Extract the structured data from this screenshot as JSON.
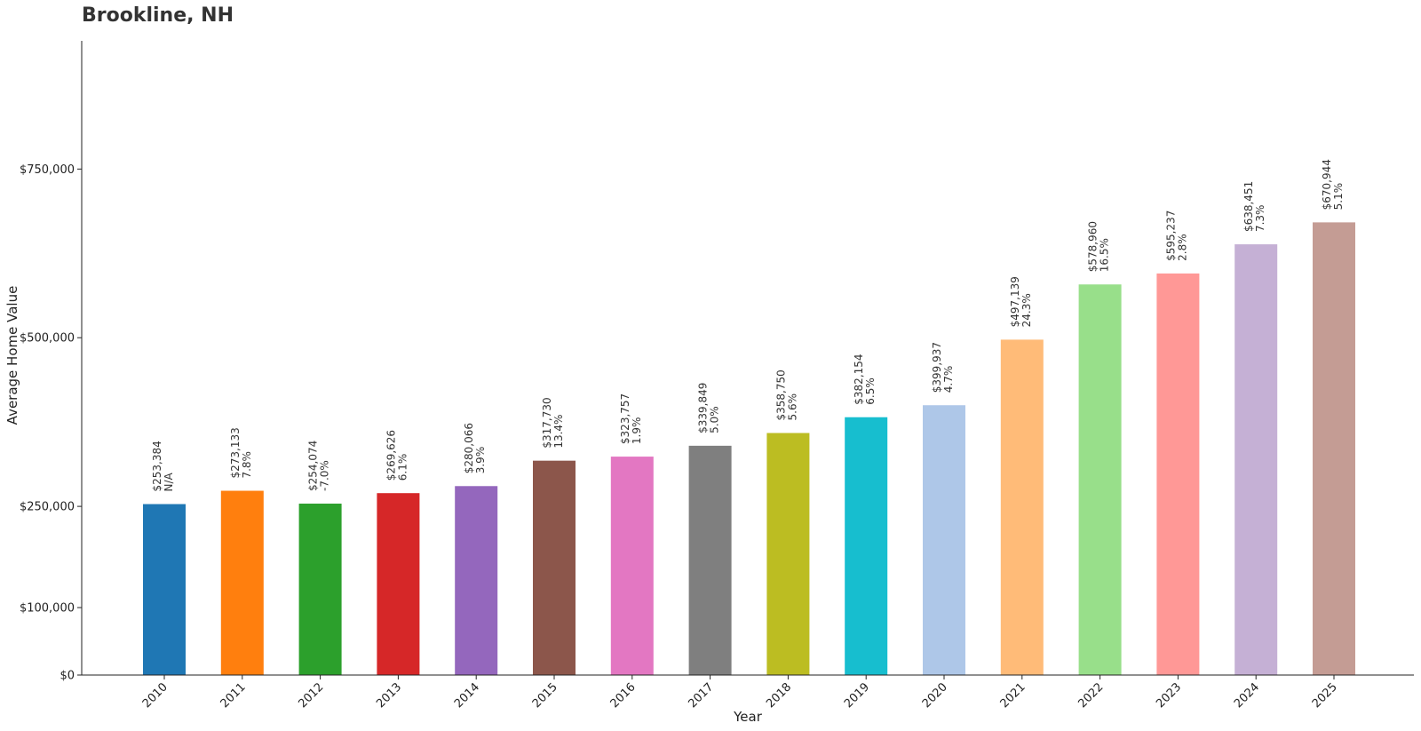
{
  "chart_data": {
    "type": "bar",
    "title": "Brookline, NH",
    "xlabel": "Year",
    "ylabel": "Average Home Value",
    "categories": [
      "2010",
      "2011",
      "2012",
      "2013",
      "2014",
      "2015",
      "2016",
      "2017",
      "2018",
      "2019",
      "2020",
      "2021",
      "2022",
      "2023",
      "2024",
      "2025"
    ],
    "values": [
      253384,
      273133,
      254074,
      269626,
      280066,
      317730,
      323757,
      339849,
      358750,
      382154,
      399937,
      497139,
      578960,
      595237,
      638451,
      670944
    ],
    "value_labels": [
      "$253,384",
      "$273,133",
      "$254,074",
      "$269,626",
      "$280,066",
      "$317,730",
      "$323,757",
      "$339,849",
      "$358,750",
      "$382,154",
      "$399,937",
      "$497,139",
      "$578,960",
      "$595,237",
      "$638,451",
      "$670,944"
    ],
    "change_labels": [
      "N/A",
      "7.8%",
      "-7.0%",
      "6.1%",
      "3.9%",
      "13.4%",
      "1.9%",
      "5.0%",
      "5.6%",
      "6.5%",
      "4.7%",
      "24.3%",
      "16.5%",
      "2.8%",
      "7.3%",
      "5.1%"
    ],
    "colors": [
      "#1f77b4",
      "#ff7f0e",
      "#2ca02c",
      "#d62728",
      "#9467bd",
      "#8c564b",
      "#e377c2",
      "#7f7f7f",
      "#bcbd22",
      "#17becf",
      "#aec7e8",
      "#ffbb78",
      "#98df8a",
      "#ff9896",
      "#c5b0d5",
      "#c49c94"
    ],
    "yticks": [
      0,
      100000,
      250000,
      500000,
      750000
    ],
    "ytick_labels": [
      "$0",
      "$100,000",
      "$250,000",
      "$500,000",
      "$750,000"
    ],
    "ylim": [
      0,
      940000
    ],
    "grid": false,
    "legend": "none"
  }
}
